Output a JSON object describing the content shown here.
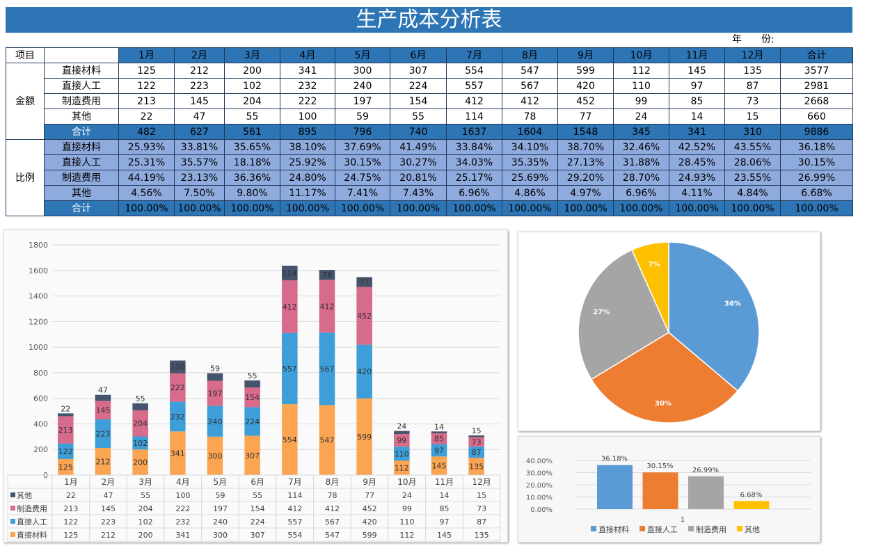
{
  "title": "生产成本分析表",
  "year_label": "年　　份:",
  "table": {
    "col_header": "项目",
    "months": [
      "1月",
      "2月",
      "3月",
      "4月",
      "5月",
      "6月",
      "7月",
      "8月",
      "9月",
      "10月",
      "11月",
      "12月"
    ],
    "total_label": "合计",
    "amount_group": "金额",
    "ratio_group": "比例",
    "amount_rows": [
      {
        "label": "直接材料",
        "values": [
          125,
          212,
          200,
          341,
          300,
          307,
          554,
          547,
          599,
          112,
          145,
          135
        ],
        "total": 3577
      },
      {
        "label": "直接人工",
        "values": [
          122,
          223,
          102,
          232,
          240,
          224,
          557,
          567,
          420,
          110,
          97,
          87
        ],
        "total": 2981
      },
      {
        "label": "制造费用",
        "values": [
          213,
          145,
          204,
          222,
          197,
          154,
          412,
          412,
          452,
          99,
          85,
          73
        ],
        "total": 2668
      },
      {
        "label": "其他",
        "values": [
          22,
          47,
          55,
          100,
          59,
          55,
          114,
          78,
          77,
          24,
          14,
          15
        ],
        "total": 660
      },
      {
        "label": "合计",
        "values": [
          482,
          627,
          561,
          895,
          796,
          740,
          1637,
          1604,
          1548,
          345,
          341,
          310
        ],
        "total": 9886
      }
    ],
    "ratio_rows": [
      {
        "label": "直接材料",
        "values": [
          "25.93%",
          "33.81%",
          "35.65%",
          "38.10%",
          "37.69%",
          "41.49%",
          "33.84%",
          "34.10%",
          "38.70%",
          "32.46%",
          "42.52%",
          "43.55%"
        ],
        "total": "36.18%"
      },
      {
        "label": "直接人工",
        "values": [
          "25.31%",
          "35.57%",
          "18.18%",
          "25.92%",
          "30.15%",
          "30.27%",
          "34.03%",
          "35.35%",
          "27.13%",
          "31.88%",
          "28.45%",
          "28.06%"
        ],
        "total": "30.15%"
      },
      {
        "label": "制造费用",
        "values": [
          "44.19%",
          "23.13%",
          "36.36%",
          "24.80%",
          "24.75%",
          "20.81%",
          "25.17%",
          "25.69%",
          "29.20%",
          "28.70%",
          "24.93%",
          "23.55%"
        ],
        "total": "26.99%"
      },
      {
        "label": "其他",
        "values": [
          "4.56%",
          "7.50%",
          "9.80%",
          "11.17%",
          "7.41%",
          "7.43%",
          "6.96%",
          "4.86%",
          "4.97%",
          "6.96%",
          "4.11%",
          "4.84%"
        ],
        "total": "6.68%"
      },
      {
        "label": "合计",
        "values": [
          "100.00%",
          "100.00%",
          "100.00%",
          "100.00%",
          "100.00%",
          "100.00%",
          "100.00%",
          "100.00%",
          "100.00%",
          "100.00%",
          "100.00%",
          "100.00%"
        ],
        "total": "100.00%"
      }
    ]
  },
  "chart_data": [
    {
      "type": "bar",
      "stacked": true,
      "categories": [
        "1月",
        "2月",
        "3月",
        "4月",
        "5月",
        "6月",
        "7月",
        "8月",
        "9月",
        "10月",
        "11月",
        "12月"
      ],
      "ylim": [
        0,
        1800
      ],
      "yticks": [
        0,
        200,
        400,
        600,
        800,
        1000,
        1200,
        1400,
        1600,
        1800
      ],
      "grid": true,
      "legend": "data-table",
      "series": [
        {
          "name": "直接材料",
          "color": "#fba553",
          "values": [
            125,
            212,
            200,
            341,
            300,
            307,
            554,
            547,
            599,
            112,
            145,
            135
          ]
        },
        {
          "name": "直接人工",
          "color": "#3d9ed8",
          "values": [
            122,
            223,
            102,
            232,
            240,
            224,
            557,
            567,
            420,
            110,
            97,
            87
          ]
        },
        {
          "name": "制造费用",
          "color": "#d76b8c",
          "values": [
            213,
            145,
            204,
            222,
            197,
            154,
            412,
            412,
            452,
            99,
            85,
            73
          ]
        },
        {
          "name": "其他",
          "color": "#44546a",
          "values": [
            22,
            47,
            55,
            100,
            59,
            55,
            114,
            78,
            77,
            24,
            14,
            15
          ]
        }
      ]
    },
    {
      "type": "pie",
      "labels": [
        "直接材料",
        "直接人工",
        "制造费用",
        "其他"
      ],
      "values": [
        36.18,
        30.15,
        26.99,
        6.68
      ],
      "data_labels": [
        "36%",
        "30%",
        "27%",
        "7%"
      ],
      "colors": [
        "#5b9bd5",
        "#ed7d31",
        "#a5a5a5",
        "#ffc000"
      ]
    },
    {
      "type": "bar",
      "categories": [
        "1"
      ],
      "ylim": [
        0,
        40
      ],
      "yticks": [
        "0.00%",
        "10.00%",
        "20.00%",
        "30.00%",
        "40.00%"
      ],
      "legend": "bottom",
      "series": [
        {
          "name": "直接材料",
          "values": [
            36.18
          ],
          "label": "36.18%",
          "color": "#5b9bd5"
        },
        {
          "name": "直接人工",
          "values": [
            30.15
          ],
          "label": "30.15%",
          "color": "#ed7d31"
        },
        {
          "name": "制造费用",
          "values": [
            26.99
          ],
          "label": "26.99%",
          "color": "#a5a5a5"
        },
        {
          "name": "其他",
          "values": [
            6.68
          ],
          "label": "6.68%",
          "color": "#ffc000"
        }
      ]
    }
  ]
}
